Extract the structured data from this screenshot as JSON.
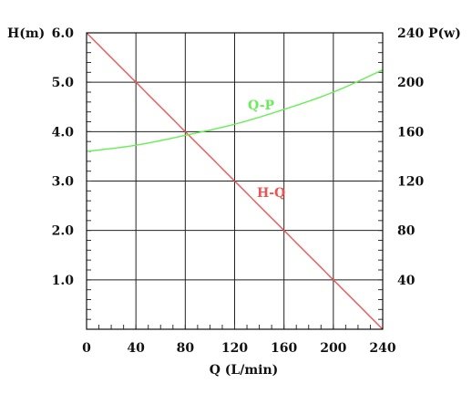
{
  "chart_data": {
    "type": "line",
    "x_axis": {
      "label": "Q (L/min)",
      "range": [
        0,
        240
      ],
      "ticks": [
        "0",
        "40",
        "80",
        "120",
        "160",
        "200",
        "240"
      ]
    },
    "y_axis_left": {
      "label": "H(m)",
      "range": [
        0,
        6
      ],
      "ticks": [
        "1.0",
        "2.0",
        "3.0",
        "4.0",
        "5.0",
        "6.0"
      ]
    },
    "y_axis_right": {
      "label": "P(w)",
      "range": [
        0,
        240
      ],
      "ticks": [
        "40",
        "80",
        "120",
        "160",
        "200",
        "240"
      ]
    },
    "grid": true,
    "series": [
      {
        "name": "H-Q",
        "axis": "left",
        "color": "#ef5350",
        "x": [
          0,
          40,
          80,
          120,
          160,
          200,
          240
        ],
        "y": [
          6.0,
          5.0,
          4.0,
          3.0,
          2.0,
          1.0,
          0.0
        ]
      },
      {
        "name": "Q-P",
        "axis": "right",
        "color": "#66ee55",
        "x": [
          0,
          40,
          80,
          120,
          160,
          200,
          240
        ],
        "y": [
          144,
          149,
          157,
          166,
          178,
          192,
          210
        ]
      }
    ]
  }
}
